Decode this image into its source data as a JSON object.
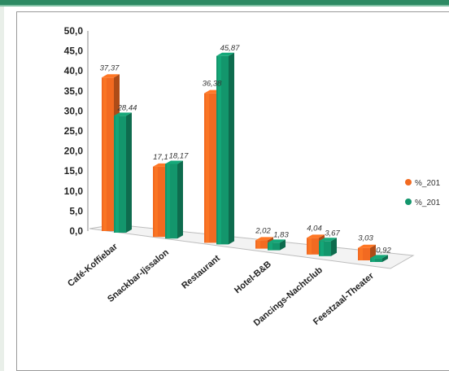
{
  "colors": {
    "series1": "#f26a21",
    "series2": "#13966c",
    "frame_accent": "#2d8a63"
  },
  "chart_data": {
    "type": "bar",
    "subtype": "3d-clustered-column",
    "categories": [
      "Café-Koffiebar",
      "Snackbar-Ijssalon",
      "Restaurant",
      "Hotel-B&B",
      "Dancings-Nachtclub",
      "Feestzaal-Theater"
    ],
    "series": [
      {
        "name": "%_201",
        "values": [
          37.37,
          17.1,
          36.38,
          2.02,
          4.04,
          3.03
        ]
      },
      {
        "name": "%_201",
        "values": [
          28.44,
          18.17,
          45.87,
          1.83,
          3.67,
          0.92
        ]
      }
    ],
    "data_labels": [
      [
        "37,37",
        "17,1",
        "36,38",
        "2,02",
        "4,04",
        "3,03"
      ],
      [
        "28,44",
        "18,17",
        "45,87",
        "1,83",
        "3,67",
        "0,92"
      ]
    ],
    "ylim": [
      0,
      50
    ],
    "yticks": [
      "0,0",
      "5,0",
      "10,0",
      "15,0",
      "20,0",
      "25,0",
      "30,0",
      "35,0",
      "40,0",
      "45,0",
      "50,0"
    ],
    "grid": false,
    "legend_position": "right"
  }
}
